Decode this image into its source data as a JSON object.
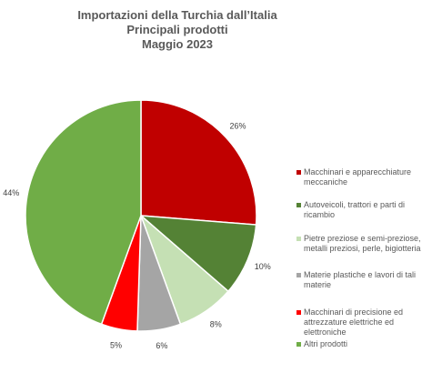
{
  "chart_data": {
    "type": "pie",
    "title_lines": [
      "Importazioni della Turchia dall’Italia",
      "Principali prodotti",
      "Maggio 2023"
    ],
    "slices": [
      {
        "name": "Macchinari e apparecchiature meccaniche",
        "value": 26,
        "label": "26%",
        "color": "#C00000"
      },
      {
        "name": "Autoveicoli, trattori e parti di ricambio",
        "value": 10,
        "label": "10%",
        "color": "#548235"
      },
      {
        "name": "Pietre preziose e semi-preziose, metalli preziosi, perle, bigiotteria",
        "value": 8,
        "label": "8%",
        "color": "#C5E0B4"
      },
      {
        "name": "Materie plastiche e lavori di tali materie",
        "value": 6,
        "label": "6%",
        "color": "#A5A5A5"
      },
      {
        "name": "Macchinari di precisione ed attrezzature elettriche ed elettroniche",
        "value": 5,
        "label": "5%",
        "color": "#FF0000"
      },
      {
        "name": "Altri prodotti",
        "value": 44,
        "label": "44%",
        "color": "#70AD47"
      }
    ],
    "legend_position": "right"
  }
}
